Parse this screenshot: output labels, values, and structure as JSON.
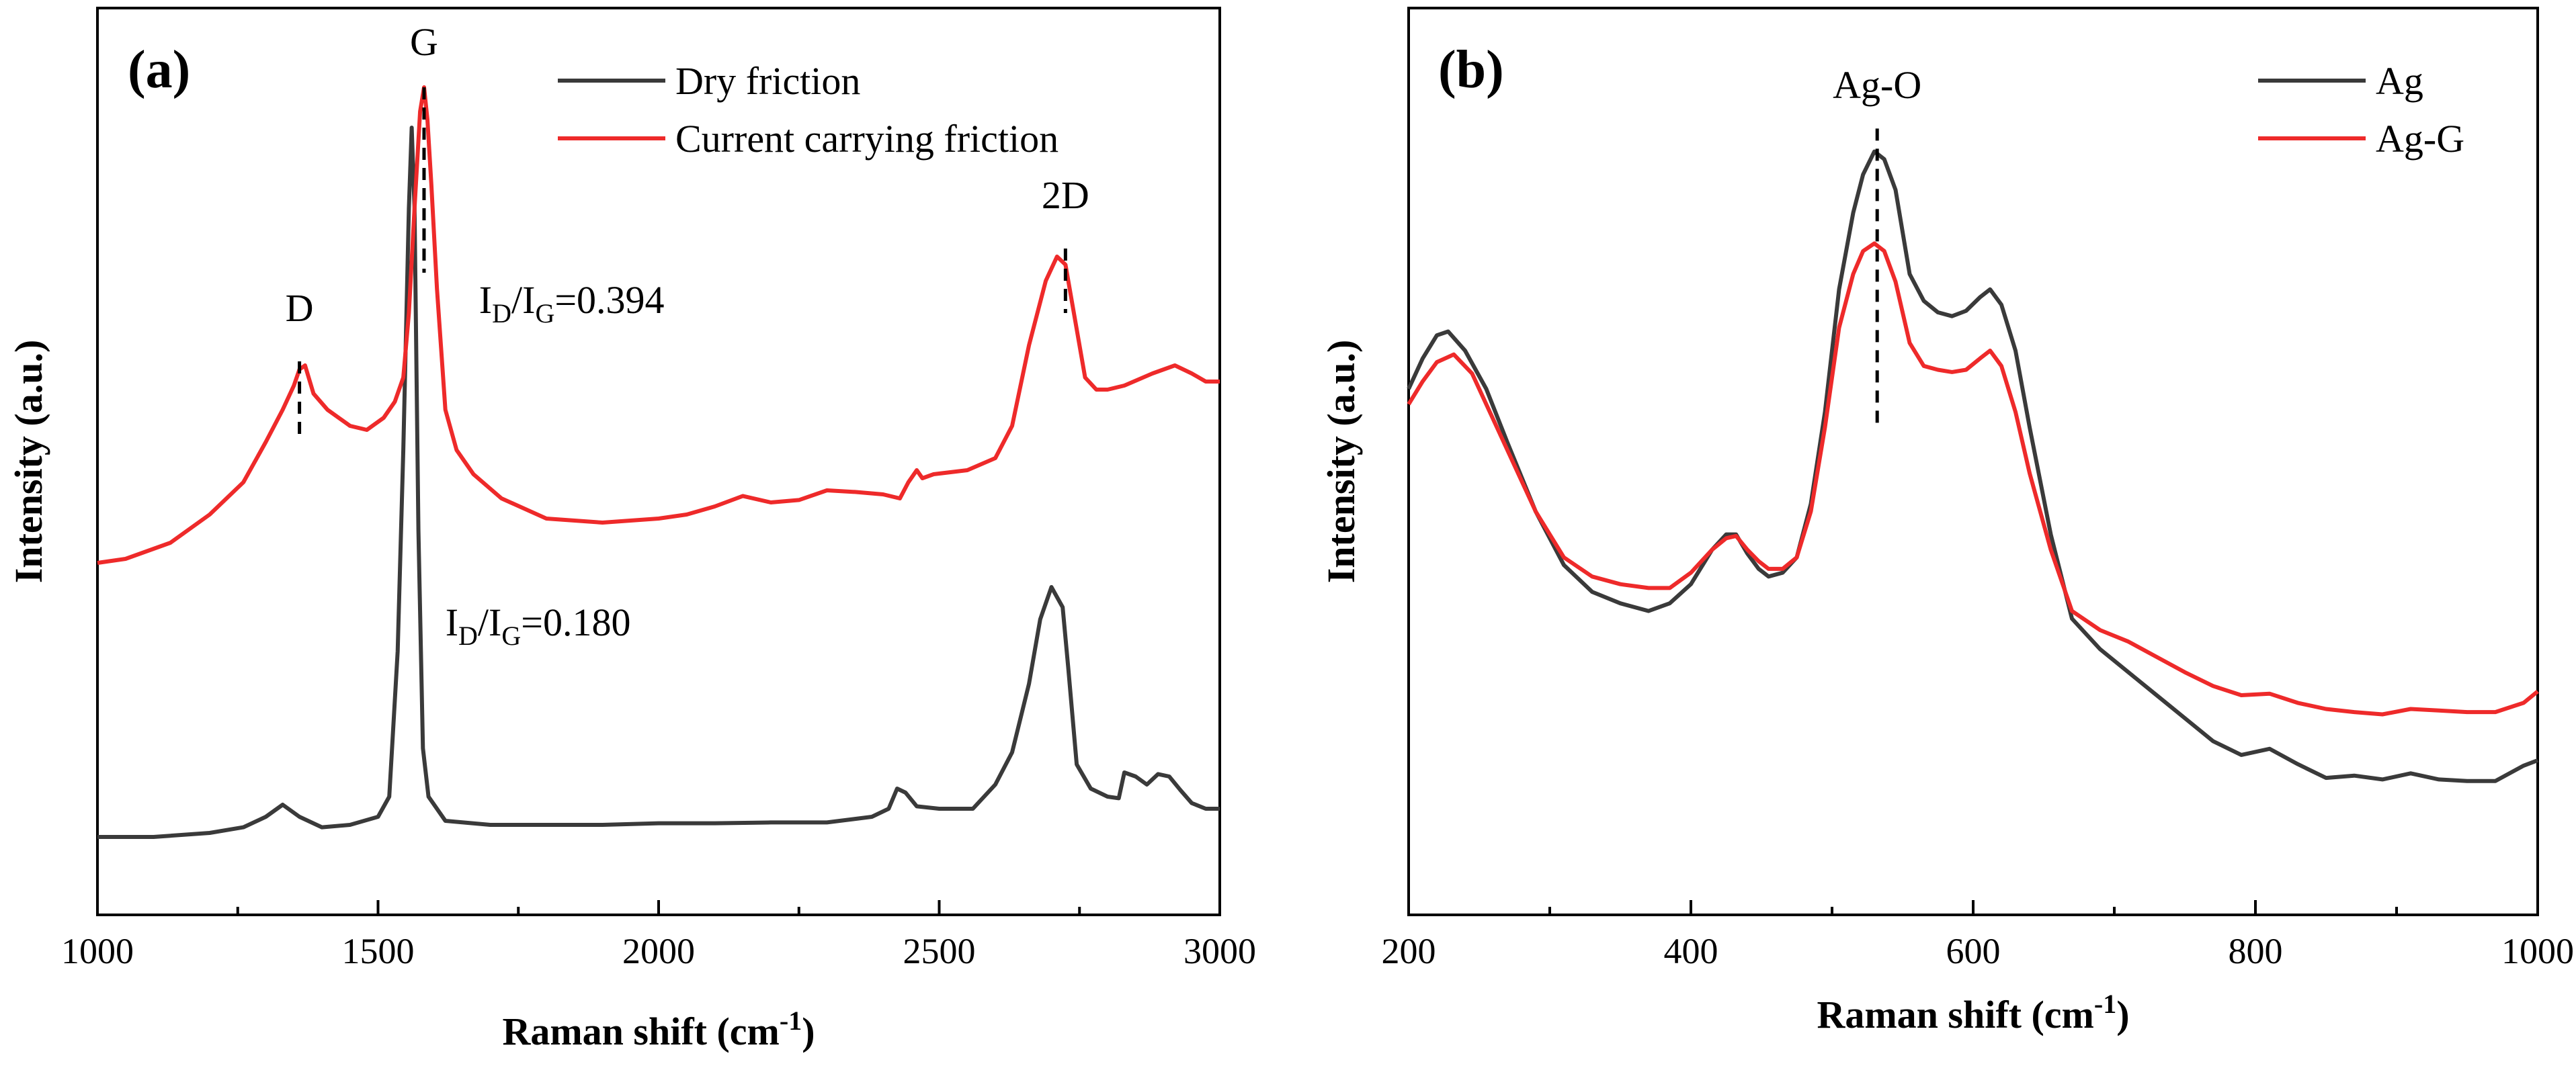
{
  "chart_data": [
    {
      "type": "line",
      "panel_label": "(a)",
      "xlabel": "Raman shift (cm",
      "xlabel_sup": "-1",
      "xlabel_close": ")",
      "ylabel": "Intensity (a.u.)",
      "xlim": [
        1000,
        3000
      ],
      "ylim": [
        0,
        1
      ],
      "xticks": [
        1000,
        1500,
        2000,
        2500,
        3000
      ],
      "yticks_visible": false,
      "legend": {
        "placement": "top-right",
        "entries": [
          "Dry friction",
          "Current carrying friction"
        ]
      },
      "series": [
        {
          "name": "Dry friction",
          "color": "#3a3a3a",
          "x": [
            1000,
            1100,
            1200,
            1260,
            1300,
            1330,
            1360,
            1400,
            1450,
            1500,
            1520,
            1535,
            1545,
            1555,
            1560,
            1565,
            1572,
            1580,
            1590,
            1620,
            1700,
            1800,
            1900,
            2000,
            2100,
            2200,
            2300,
            2380,
            2410,
            2425,
            2440,
            2460,
            2500,
            2560,
            2600,
            2630,
            2660,
            2680,
            2700,
            2720,
            2730,
            2745,
            2770,
            2800,
            2820,
            2830,
            2850,
            2870,
            2890,
            2910,
            2930,
            2950,
            2975,
            3000
          ],
          "y": [
            0.07,
            0.07,
            0.075,
            0.082,
            0.095,
            0.11,
            0.095,
            0.082,
            0.085,
            0.095,
            0.12,
            0.3,
            0.55,
            0.85,
            0.95,
            0.85,
            0.45,
            0.18,
            0.12,
            0.09,
            0.085,
            0.085,
            0.085,
            0.087,
            0.087,
            0.088,
            0.088,
            0.095,
            0.105,
            0.13,
            0.125,
            0.108,
            0.105,
            0.105,
            0.135,
            0.175,
            0.26,
            0.34,
            0.38,
            0.355,
            0.28,
            0.16,
            0.13,
            0.12,
            0.118,
            0.15,
            0.145,
            0.135,
            0.148,
            0.145,
            0.128,
            0.112,
            0.105,
            0.105
          ]
        },
        {
          "name": "Current carrying friction",
          "color": "#ee2a2a",
          "x": [
            1000,
            1050,
            1130,
            1200,
            1260,
            1300,
            1330,
            1350,
            1360,
            1370,
            1385,
            1410,
            1450,
            1480,
            1510,
            1530,
            1545,
            1555,
            1565,
            1575,
            1582,
            1588,
            1595,
            1605,
            1620,
            1640,
            1670,
            1720,
            1800,
            1900,
            2000,
            2050,
            2100,
            2150,
            2200,
            2250,
            2300,
            2350,
            2400,
            2430,
            2445,
            2460,
            2470,
            2490,
            2550,
            2600,
            2630,
            2660,
            2690,
            2710,
            2725,
            2740,
            2760,
            2780,
            2800,
            2830,
            2880,
            2920,
            2950,
            2975,
            3000
          ],
          "y": [
            0.41,
            0.415,
            0.435,
            0.47,
            0.51,
            0.56,
            0.6,
            0.63,
            0.65,
            0.655,
            0.62,
            0.6,
            0.58,
            0.575,
            0.59,
            0.61,
            0.64,
            0.72,
            0.85,
            0.97,
            1.0,
            0.96,
            0.88,
            0.75,
            0.6,
            0.55,
            0.52,
            0.49,
            0.465,
            0.46,
            0.465,
            0.47,
            0.48,
            0.493,
            0.485,
            0.488,
            0.5,
            0.498,
            0.495,
            0.49,
            0.51,
            0.525,
            0.515,
            0.52,
            0.525,
            0.54,
            0.58,
            0.68,
            0.76,
            0.79,
            0.78,
            0.72,
            0.64,
            0.625,
            0.625,
            0.63,
            0.645,
            0.655,
            0.645,
            0.635,
            0.635
          ]
        }
      ],
      "annotations": [
        {
          "label": "D",
          "x": 1360,
          "line_y": [
            0.56,
            0.66
          ],
          "label_y": 0.71
        },
        {
          "label": "G",
          "x": 1582,
          "line_y": [
            0.77,
            1.0
          ],
          "label_y": 1.04
        },
        {
          "label": "2D",
          "x": 2725,
          "line_y": [
            0.72,
            0.8
          ],
          "label_y": 0.85
        }
      ],
      "ratio_labels": [
        {
          "prefix": "I",
          "sub1": "D",
          "slash": "/I",
          "sub2": "G",
          "value": "=0.394",
          "x": 1680,
          "y": 0.72
        },
        {
          "prefix": "I",
          "sub1": "D",
          "slash": "/I",
          "sub2": "G",
          "value": "=0.180",
          "x": 1620,
          "y": 0.32
        }
      ]
    },
    {
      "type": "line",
      "panel_label": "(b)",
      "xlabel": "Raman shift (cm",
      "xlabel_sup": "-1",
      "xlabel_close": ")",
      "ylabel": "Intensity (a.u.)",
      "xlim": [
        200,
        1000
      ],
      "ylim": [
        0,
        1
      ],
      "xticks": [
        200,
        400,
        600,
        800,
        1000
      ],
      "minor_xticks": [
        300,
        500,
        700,
        900
      ],
      "yticks_visible": false,
      "legend": {
        "placement": "top-right",
        "entries": [
          "Ag",
          "Ag-G"
        ]
      },
      "series": [
        {
          "name": "Ag",
          "color": "#3a3a3a",
          "x": [
            200,
            210,
            220,
            228,
            240,
            255,
            270,
            290,
            310,
            330,
            350,
            370,
            385,
            400,
            415,
            425,
            432,
            440,
            448,
            455,
            465,
            475,
            485,
            495,
            505,
            515,
            522,
            530,
            537,
            545,
            555,
            565,
            575,
            585,
            595,
            605,
            612,
            620,
            630,
            640,
            655,
            670,
            690,
            710,
            730,
            750,
            770,
            790,
            810,
            830,
            850,
            870,
            890,
            910,
            930,
            950,
            970,
            990,
            1000
          ],
          "y": [
            0.65,
            0.69,
            0.72,
            0.725,
            0.7,
            0.65,
            0.58,
            0.49,
            0.42,
            0.385,
            0.37,
            0.36,
            0.37,
            0.395,
            0.44,
            0.46,
            0.46,
            0.435,
            0.415,
            0.405,
            0.41,
            0.43,
            0.5,
            0.62,
            0.78,
            0.88,
            0.93,
            0.96,
            0.95,
            0.91,
            0.8,
            0.765,
            0.75,
            0.745,
            0.752,
            0.77,
            0.78,
            0.76,
            0.7,
            0.6,
            0.46,
            0.35,
            0.31,
            0.28,
            0.25,
            0.22,
            0.19,
            0.172,
            0.18,
            0.16,
            0.142,
            0.145,
            0.14,
            0.148,
            0.14,
            0.138,
            0.138,
            0.158,
            0.165
          ]
        },
        {
          "name": "Ag-G",
          "color": "#ee2a2a",
          "x": [
            200,
            210,
            220,
            232,
            245,
            260,
            275,
            290,
            310,
            330,
            350,
            370,
            385,
            400,
            415,
            425,
            432,
            440,
            448,
            455,
            465,
            475,
            485,
            495,
            505,
            515,
            522,
            530,
            537,
            545,
            555,
            565,
            575,
            585,
            595,
            605,
            612,
            620,
            630,
            640,
            655,
            670,
            690,
            710,
            730,
            750,
            770,
            790,
            810,
            830,
            850,
            870,
            890,
            910,
            930,
            950,
            970,
            990,
            1000
          ],
          "y": [
            0.63,
            0.66,
            0.685,
            0.695,
            0.67,
            0.61,
            0.55,
            0.49,
            0.43,
            0.405,
            0.395,
            0.39,
            0.39,
            0.41,
            0.44,
            0.455,
            0.458,
            0.44,
            0.425,
            0.415,
            0.415,
            0.43,
            0.49,
            0.6,
            0.73,
            0.8,
            0.83,
            0.84,
            0.83,
            0.79,
            0.71,
            0.68,
            0.675,
            0.672,
            0.675,
            0.69,
            0.7,
            0.68,
            0.62,
            0.54,
            0.44,
            0.36,
            0.335,
            0.32,
            0.3,
            0.28,
            0.262,
            0.25,
            0.252,
            0.24,
            0.232,
            0.228,
            0.225,
            0.232,
            0.23,
            0.228,
            0.228,
            0.24,
            0.255
          ]
        }
      ],
      "annotations": [
        {
          "label": "Ag-O",
          "x": 532,
          "line_y": [
            0.6,
            0.99
          ],
          "label_y": 1.03
        }
      ]
    }
  ]
}
